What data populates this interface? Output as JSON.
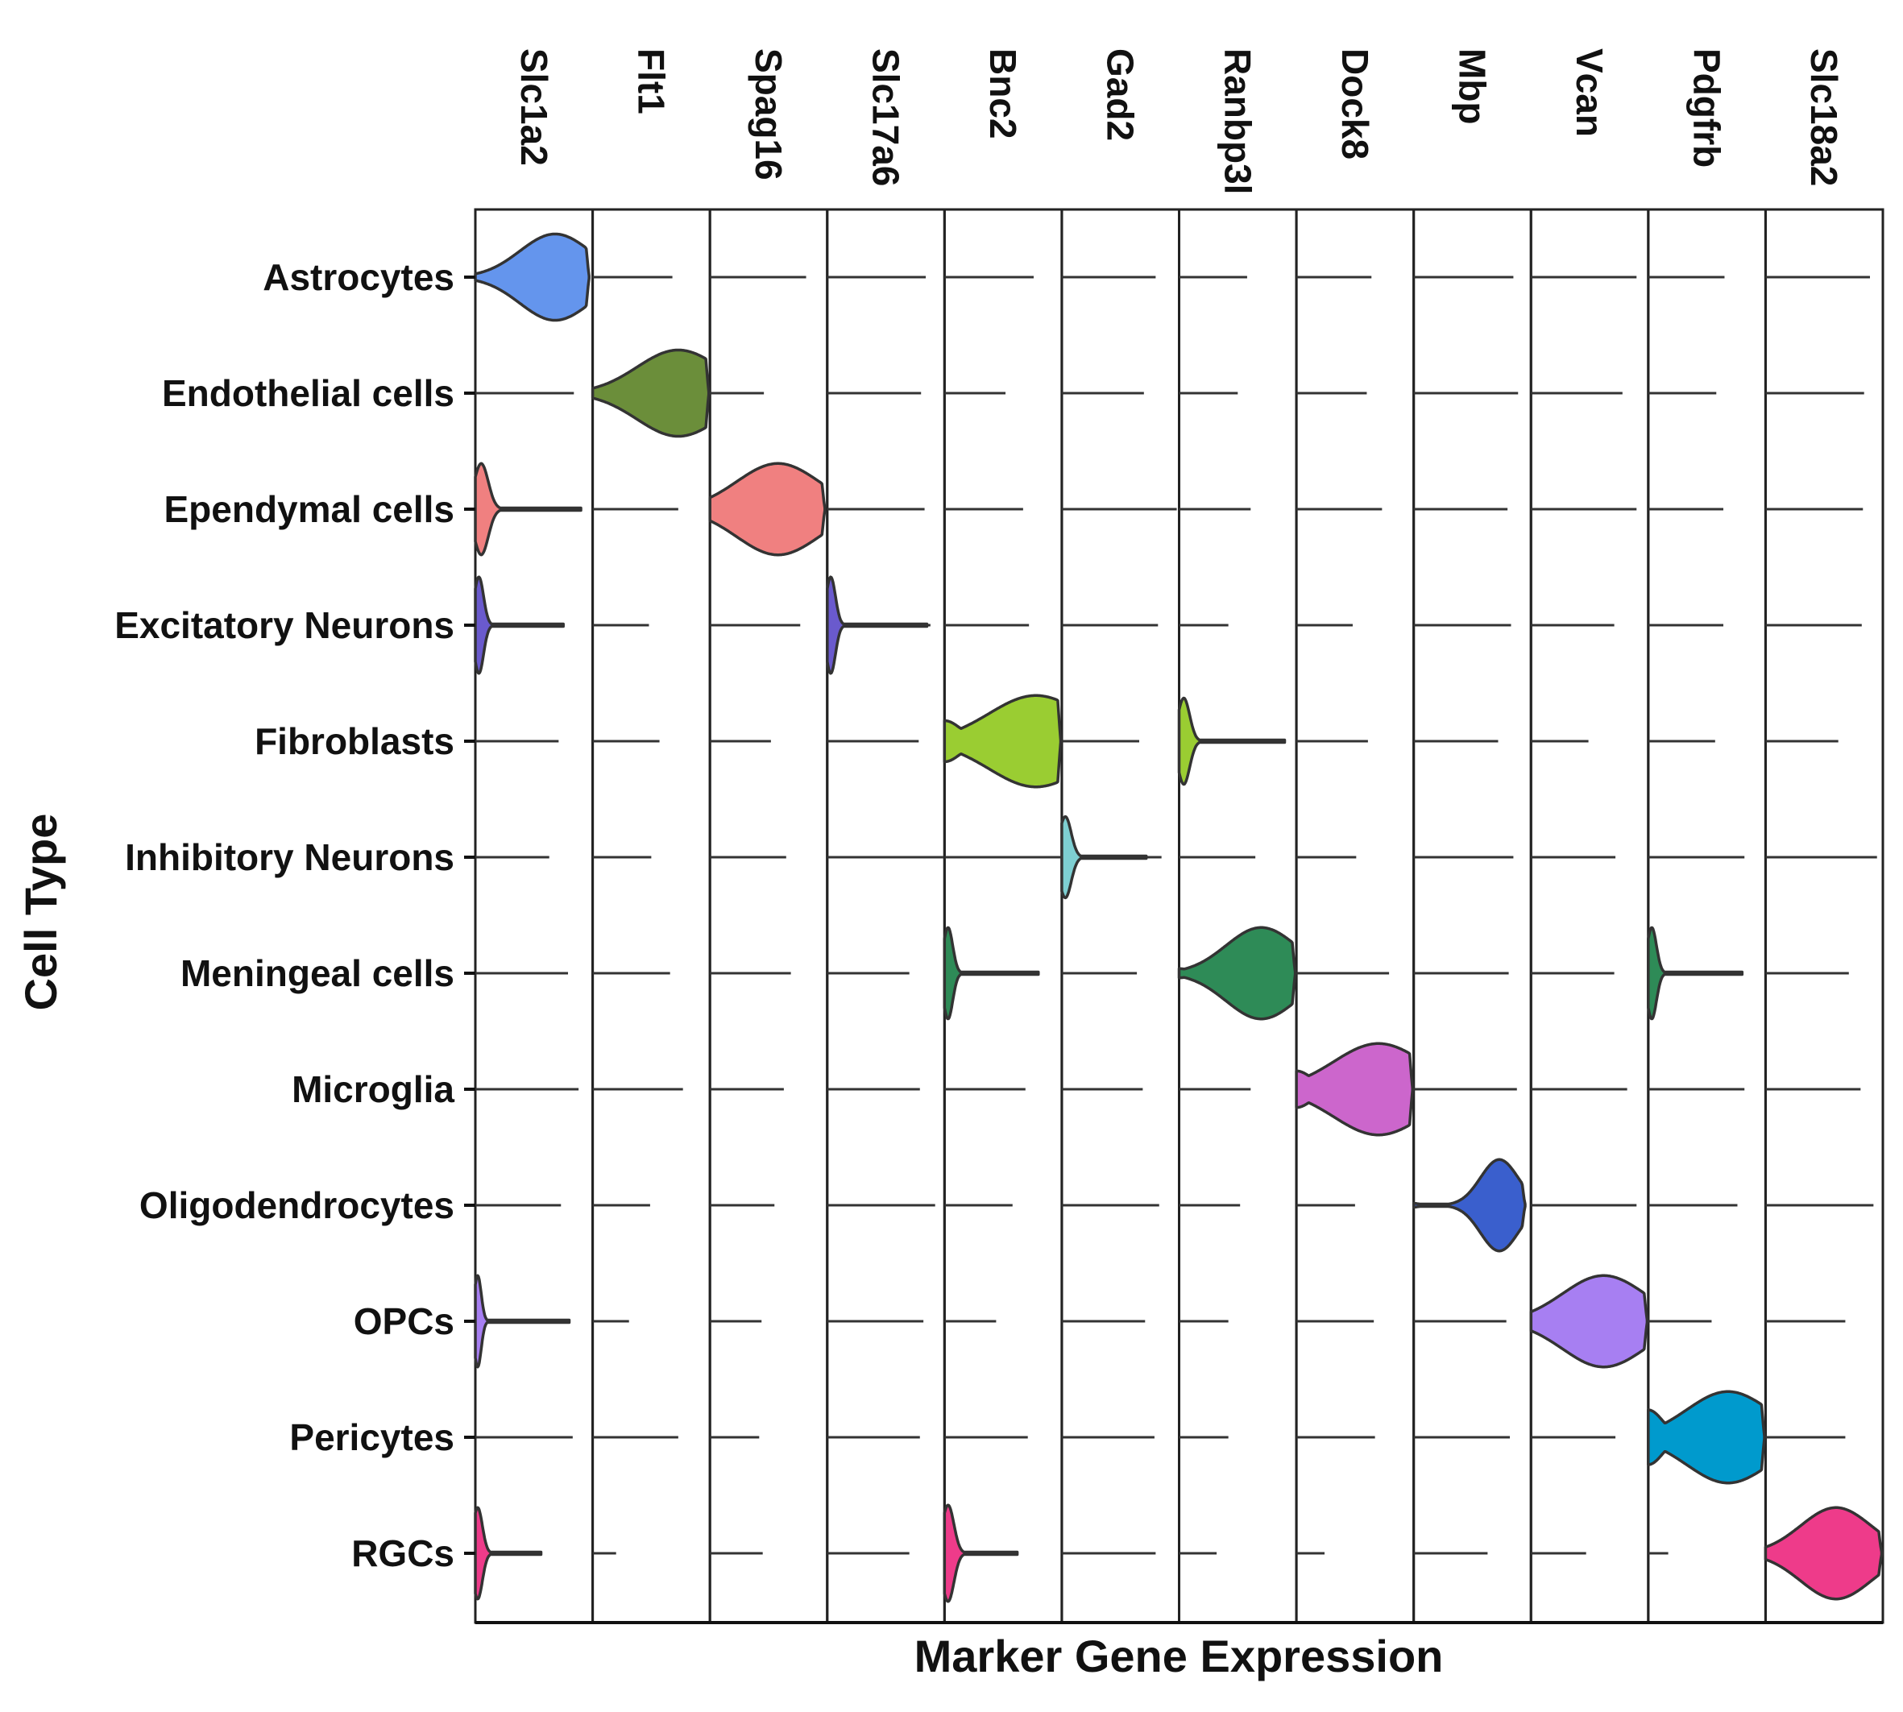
{
  "chart_data": {
    "type": "stacked-violin",
    "xlabel": "Marker Gene Expression",
    "ylabel": "Cell Type",
    "genes": [
      "Slc1a2",
      "Flt1",
      "Spag16",
      "Slc17a6",
      "Bnc2",
      "Gad2",
      "Ranbp3l",
      "Dock8",
      "Mbp",
      "Vcan",
      "Pdgfrb",
      "Slc18a2"
    ],
    "cell_types": [
      "Astrocytes",
      "Endothelial cells",
      "Ependymal cells",
      "Excitatory Neurons",
      "Fibroblasts",
      "Inhibitory Neurons",
      "Meningeal cells",
      "Microglia",
      "Oligodendrocytes",
      "OPCs",
      "Pericytes",
      "RGCs"
    ],
    "colors": {
      "Astrocytes": "#6495ed",
      "Endothelial cells": "#6b8e3a",
      "Ependymal cells": "#f08080",
      "Excitatory Neurons": "#6a5acd",
      "Fibroblasts": "#9acd32",
      "Inhibitory Neurons": "#7ecfd2",
      "Meningeal cells": "#2e8b57",
      "Microglia": "#cc66cc",
      "Oligodendrocytes": "#3a5fcd",
      "OPCs": "#a77ff2",
      "Pericytes": "#009acd",
      "RGCs": "#ee3b8a"
    },
    "line_extent": [
      [
        0.95,
        0.68,
        0.82,
        0.84,
        0.76,
        0.8,
        0.58,
        0.64,
        0.85,
        0.9,
        0.65,
        0.89
      ],
      [
        0.84,
        0.97,
        0.46,
        0.8,
        0.52,
        0.7,
        0.5,
        0.6,
        0.89,
        0.78,
        0.58,
        0.84
      ],
      [
        0.9,
        0.73,
        0.96,
        0.83,
        0.67,
        0.98,
        0.61,
        0.73,
        0.8,
        0.9,
        0.64,
        0.83
      ],
      [
        0.76,
        0.48,
        0.77,
        0.88,
        0.72,
        0.82,
        0.42,
        0.48,
        0.83,
        0.71,
        0.64,
        0.82
      ],
      [
        0.71,
        0.57,
        0.52,
        0.78,
        0.99,
        0.66,
        0.89,
        0.61,
        0.72,
        0.49,
        0.57,
        0.62
      ],
      [
        0.63,
        0.5,
        0.65,
        0.99,
        0.99,
        0.85,
        0.65,
        0.51,
        0.85,
        0.72,
        0.82,
        0.95
      ],
      [
        0.79,
        0.66,
        0.69,
        0.7,
        0.81,
        0.64,
        0.99,
        0.79,
        0.81,
        0.71,
        0.81,
        0.71
      ],
      [
        0.88,
        0.77,
        0.63,
        0.79,
        0.69,
        0.69,
        0.61,
        0.99,
        0.88,
        0.82,
        0.82,
        0.81
      ],
      [
        0.73,
        0.49,
        0.55,
        0.92,
        0.58,
        0.83,
        0.52,
        0.5,
        0.95,
        0.9,
        0.76,
        0.92
      ],
      [
        0.81,
        0.31,
        0.44,
        0.82,
        0.44,
        0.71,
        0.42,
        0.66,
        0.79,
        0.99,
        0.54,
        0.68
      ],
      [
        0.83,
        0.73,
        0.42,
        0.79,
        0.71,
        0.79,
        0.42,
        0.67,
        0.82,
        0.72,
        0.98,
        0.68
      ],
      [
        0.56,
        0.2,
        0.45,
        0.7,
        0.61,
        0.8,
        0.32,
        0.24,
        0.63,
        0.47,
        0.17,
        0.98
      ]
    ],
    "violins": [
      {
        "row": 0,
        "col": 0,
        "peak": 0.68,
        "width": 0.85,
        "spread": 0.3,
        "extent": 0.97,
        "tail": 0.05
      },
      {
        "row": 1,
        "col": 1,
        "peak": 0.73,
        "width": 0.85,
        "spread": 0.35,
        "extent": 0.99,
        "tail": 0.1
      },
      {
        "row": 2,
        "col": 0,
        "peak": 0.05,
        "width": 0.9,
        "spread": 0.06,
        "extent": 0.9,
        "tail": 0.14
      },
      {
        "row": 2,
        "col": 2,
        "peak": 0.58,
        "width": 0.9,
        "spread": 0.35,
        "extent": 0.98,
        "tail": 0.12
      },
      {
        "row": 3,
        "col": 0,
        "peak": 0.03,
        "width": 0.95,
        "spread": 0.04,
        "extent": 0.75,
        "tail": 0.18
      },
      {
        "row": 3,
        "col": 3,
        "peak": 0.03,
        "width": 0.95,
        "spread": 0.04,
        "extent": 0.85,
        "tail": 0.18
      },
      {
        "row": 4,
        "col": 4,
        "peak": 0.78,
        "width": 0.9,
        "spread": 0.4,
        "extent": 0.99,
        "tail": 0.45
      },
      {
        "row": 4,
        "col": 6,
        "peak": 0.04,
        "width": 0.85,
        "spread": 0.05,
        "extent": 0.9,
        "tail": 0.2
      },
      {
        "row": 5,
        "col": 5,
        "peak": 0.03,
        "width": 0.8,
        "spread": 0.05,
        "extent": 0.72,
        "tail": 0.35
      },
      {
        "row": 6,
        "col": 4,
        "peak": 0.03,
        "width": 0.9,
        "spread": 0.04,
        "extent": 0.8,
        "tail": 0.18
      },
      {
        "row": 6,
        "col": 6,
        "peak": 0.7,
        "width": 0.9,
        "spread": 0.3,
        "extent": 0.99,
        "tail": 0.1
      },
      {
        "row": 6,
        "col": 10,
        "peak": 0.03,
        "width": 0.9,
        "spread": 0.04,
        "extent": 0.8,
        "tail": 0.12
      },
      {
        "row": 7,
        "col": 7,
        "peak": 0.7,
        "width": 0.9,
        "spread": 0.38,
        "extent": 0.99,
        "tail": 0.4
      },
      {
        "row": 8,
        "col": 8,
        "peak": 0.73,
        "width": 0.9,
        "spread": 0.16,
        "extent": 0.95,
        "tail": 0.04
      },
      {
        "row": 9,
        "col": 0,
        "peak": 0.02,
        "width": 0.9,
        "spread": 0.03,
        "extent": 0.8,
        "tail": 0.35
      },
      {
        "row": 9,
        "col": 9,
        "peak": 0.62,
        "width": 0.9,
        "spread": 0.35,
        "extent": 0.99,
        "tail": 0.12
      },
      {
        "row": 10,
        "col": 10,
        "peak": 0.68,
        "width": 0.9,
        "spread": 0.35,
        "extent": 0.99,
        "tail": 0.6
      },
      {
        "row": 11,
        "col": 0,
        "peak": 0.02,
        "width": 0.9,
        "spread": 0.04,
        "extent": 0.56,
        "tail": 0.55
      },
      {
        "row": 11,
        "col": 4,
        "peak": 0.03,
        "width": 0.95,
        "spread": 0.05,
        "extent": 0.62,
        "tail": 0.6
      },
      {
        "row": 11,
        "col": 11,
        "peak": 0.6,
        "width": 0.9,
        "spread": 0.3,
        "extent": 0.99,
        "tail": 0.12
      }
    ]
  }
}
